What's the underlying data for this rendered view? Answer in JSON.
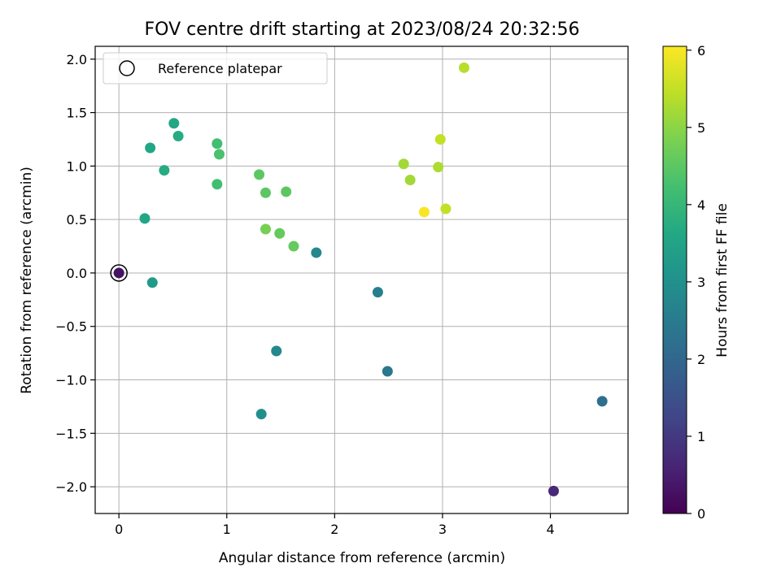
{
  "chart_data": {
    "type": "scatter",
    "title": "FOV centre drift starting at 2023/08/24 20:32:56",
    "xlabel": "Angular distance from reference (arcmin)",
    "ylabel": "Rotation from reference (arcmin)",
    "xlim": [
      -0.22,
      4.72
    ],
    "ylim": [
      -2.25,
      2.12
    ],
    "xticks": [
      0,
      1,
      2,
      3,
      4
    ],
    "yticks": [
      -2.0,
      -1.5,
      -1.0,
      -0.5,
      0.0,
      0.5,
      1.0,
      1.5,
      2.0
    ],
    "xtick_labels": [
      "0",
      "1",
      "2",
      "3",
      "4"
    ],
    "ytick_labels": [
      "−2.0",
      "−1.5",
      "−1.0",
      "−0.5",
      "0.0",
      "0.5",
      "1.0",
      "1.5",
      "2.0"
    ],
    "grid": true,
    "colormap": "viridis",
    "colorbar": {
      "label": "Hours from first FF file",
      "range": [
        0,
        6.05
      ],
      "ticks": [
        0,
        1,
        2,
        3,
        4,
        5,
        6
      ],
      "tick_labels": [
        "0",
        "1",
        "2",
        "3",
        "4",
        "5",
        "6"
      ]
    },
    "legend": {
      "placement": "top-left",
      "label": "Reference platepar",
      "marker": "hollow circle"
    },
    "reference_point": {
      "x": 0.0,
      "y": 0.0
    },
    "points": [
      {
        "x": 0.0,
        "y": 0.0,
        "hours": 0.3
      },
      {
        "x": 4.03,
        "y": -2.04,
        "hours": 0.7
      },
      {
        "x": 4.48,
        "y": -1.2,
        "hours": 2.2
      },
      {
        "x": 2.49,
        "y": -0.92,
        "hours": 2.4
      },
      {
        "x": 2.4,
        "y": -0.18,
        "hours": 2.6
      },
      {
        "x": 1.46,
        "y": -0.73,
        "hours": 2.8
      },
      {
        "x": 1.83,
        "y": 0.19,
        "hours": 2.8
      },
      {
        "x": 1.32,
        "y": -1.32,
        "hours": 3.0
      },
      {
        "x": 0.31,
        "y": -0.09,
        "hours": 3.3
      },
      {
        "x": 0.24,
        "y": 0.51,
        "hours": 3.6
      },
      {
        "x": 0.29,
        "y": 1.17,
        "hours": 3.6
      },
      {
        "x": 0.42,
        "y": 0.96,
        "hours": 3.7
      },
      {
        "x": 0.51,
        "y": 1.4,
        "hours": 3.6
      },
      {
        "x": 0.55,
        "y": 1.28,
        "hours": 3.7
      },
      {
        "x": 0.91,
        "y": 1.21,
        "hours": 4.2
      },
      {
        "x": 0.93,
        "y": 1.11,
        "hours": 4.3
      },
      {
        "x": 0.91,
        "y": 0.83,
        "hours": 4.2
      },
      {
        "x": 1.3,
        "y": 0.92,
        "hours": 4.5
      },
      {
        "x": 1.36,
        "y": 0.75,
        "hours": 4.5
      },
      {
        "x": 1.55,
        "y": 0.76,
        "hours": 4.5
      },
      {
        "x": 1.36,
        "y": 0.41,
        "hours": 4.8
      },
      {
        "x": 1.49,
        "y": 0.37,
        "hours": 4.6
      },
      {
        "x": 1.62,
        "y": 0.25,
        "hours": 4.6
      },
      {
        "x": 2.64,
        "y": 1.02,
        "hours": 5.2
      },
      {
        "x": 2.7,
        "y": 0.87,
        "hours": 5.2
      },
      {
        "x": 2.96,
        "y": 0.99,
        "hours": 5.3
      },
      {
        "x": 2.98,
        "y": 1.25,
        "hours": 5.5
      },
      {
        "x": 3.03,
        "y": 0.6,
        "hours": 5.5
      },
      {
        "x": 3.2,
        "y": 1.92,
        "hours": 5.4
      },
      {
        "x": 2.83,
        "y": 0.57,
        "hours": 6.0
      }
    ]
  }
}
